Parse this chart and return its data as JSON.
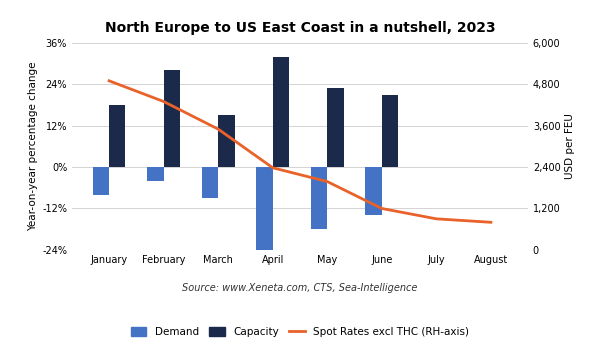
{
  "title": "North Europe to US East Coast in a nutshell, 2023",
  "categories": [
    "January",
    "February",
    "March",
    "April",
    "May",
    "June",
    "July",
    "August"
  ],
  "demand": [
    -8,
    -4,
    -9,
    -25,
    -18,
    -14,
    0,
    0
  ],
  "capacity": [
    18,
    28,
    15,
    32,
    23,
    21,
    0,
    0
  ],
  "spot_rates": [
    4900,
    4300,
    3500,
    2380,
    1980,
    1200,
    900,
    800
  ],
  "demand_color": "#4472C4",
  "capacity_color": "#1B2A4A",
  "spot_color": "#E8622A",
  "left_ylim": [
    -24,
    36
  ],
  "left_yticks": [
    -24,
    -12,
    0,
    12,
    24,
    36
  ],
  "left_ytick_labels": [
    "-24%",
    "-12%",
    "0%",
    "12%",
    "24%",
    "36%"
  ],
  "right_ylim": [
    0,
    6000
  ],
  "right_yticks": [
    0,
    1200,
    2400,
    3600,
    4800,
    6000
  ],
  "right_ytick_labels": [
    "0",
    "1,200",
    "2,400",
    "3,600",
    "4,800",
    "6,000"
  ],
  "ylabel_left": "Year-on-year percentage change",
  "ylabel_right": "USD per FEU",
  "source": "Source: www.Xeneta.com, CTS, Sea-Intelligence",
  "legend_demand": "Demand",
  "legend_capacity": "Capacity",
  "legend_spot": "Spot Rates excl THC (RH-axis)",
  "bg_color": "#FFFFFF",
  "bar_width": 0.3,
  "title_fontsize": 10,
  "axis_fontsize": 7,
  "label_fontsize": 7.5,
  "source_fontsize": 7,
  "legend_fontsize": 7.5
}
